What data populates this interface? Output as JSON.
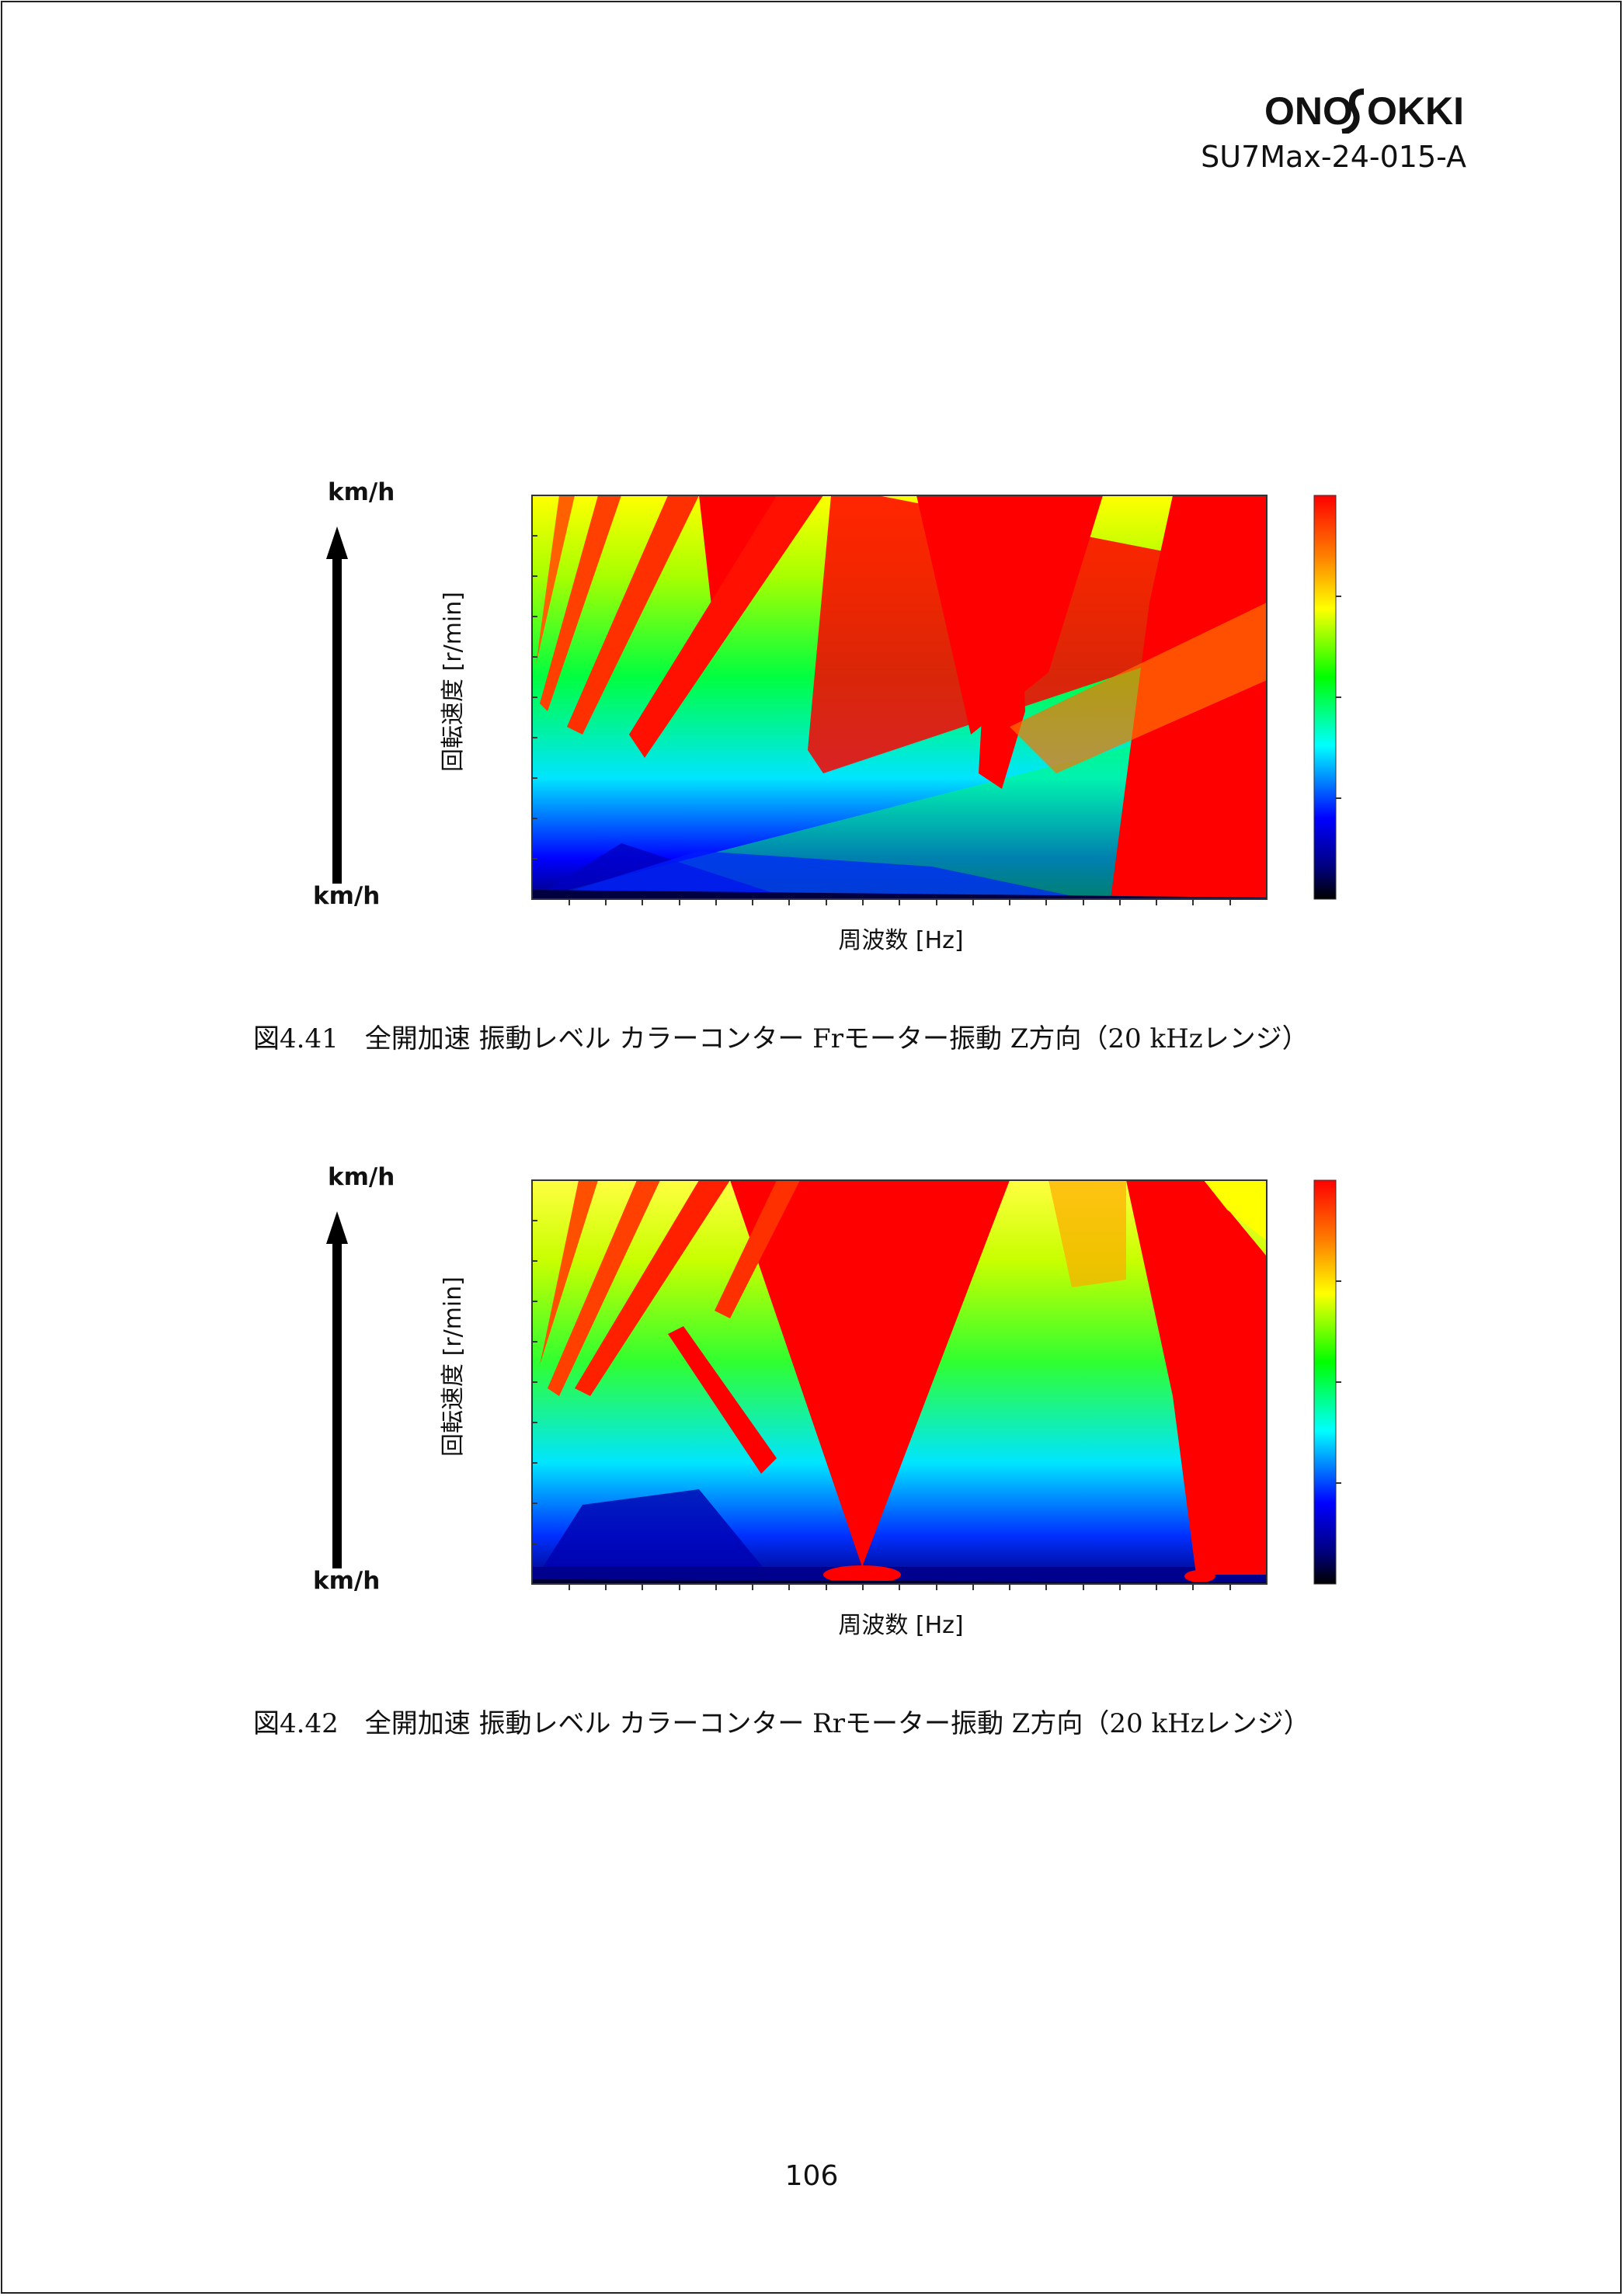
{
  "header": {
    "logo_text": "ONOSOKKI",
    "doc_id": "SU7Max-24-015-A"
  },
  "figures": [
    {
      "speed_top": "km/h",
      "speed_bottom": "km/h",
      "ylabel": "回転速度 [r/min]",
      "xlabel": "周波数 [Hz]",
      "caption": "図4.41　全開加速 振動レベル カラーコンター Frモーター振動 Z方向（20 kHzレンジ）"
    },
    {
      "speed_top": "km/h",
      "speed_bottom": "km/h",
      "ylabel": "回転速度 [r/min]",
      "xlabel": "周波数 [Hz]",
      "caption": "図4.42　全開加速 振動レベル カラーコンター Rrモーター振動 Z方向（20 kHzレンジ）"
    }
  ],
  "chart_data": [
    {
      "type": "heatmap",
      "title": "",
      "xlabel": "周波数 [Hz]",
      "ylabel": "回転速度 [r/min]",
      "colorbar": [
        "#000000",
        "#00007f",
        "#0000ff",
        "#00bfff",
        "#00ffff",
        "#00ff7f",
        "#00ff00",
        "#bfff00",
        "#ffff00",
        "#ffbf00",
        "#ff7f00",
        "#ff0000"
      ],
      "grid": false
    },
    {
      "type": "heatmap",
      "title": "",
      "xlabel": "周波数 [Hz]",
      "ylabel": "回転速度 [r/min]",
      "colorbar": [
        "#000000",
        "#00007f",
        "#0000ff",
        "#00bfff",
        "#00ffff",
        "#00ff7f",
        "#00ff00",
        "#bfff00",
        "#ffff00",
        "#ffbf00",
        "#ff7f00",
        "#ff0000"
      ],
      "grid": false
    }
  ],
  "page_number": "106"
}
